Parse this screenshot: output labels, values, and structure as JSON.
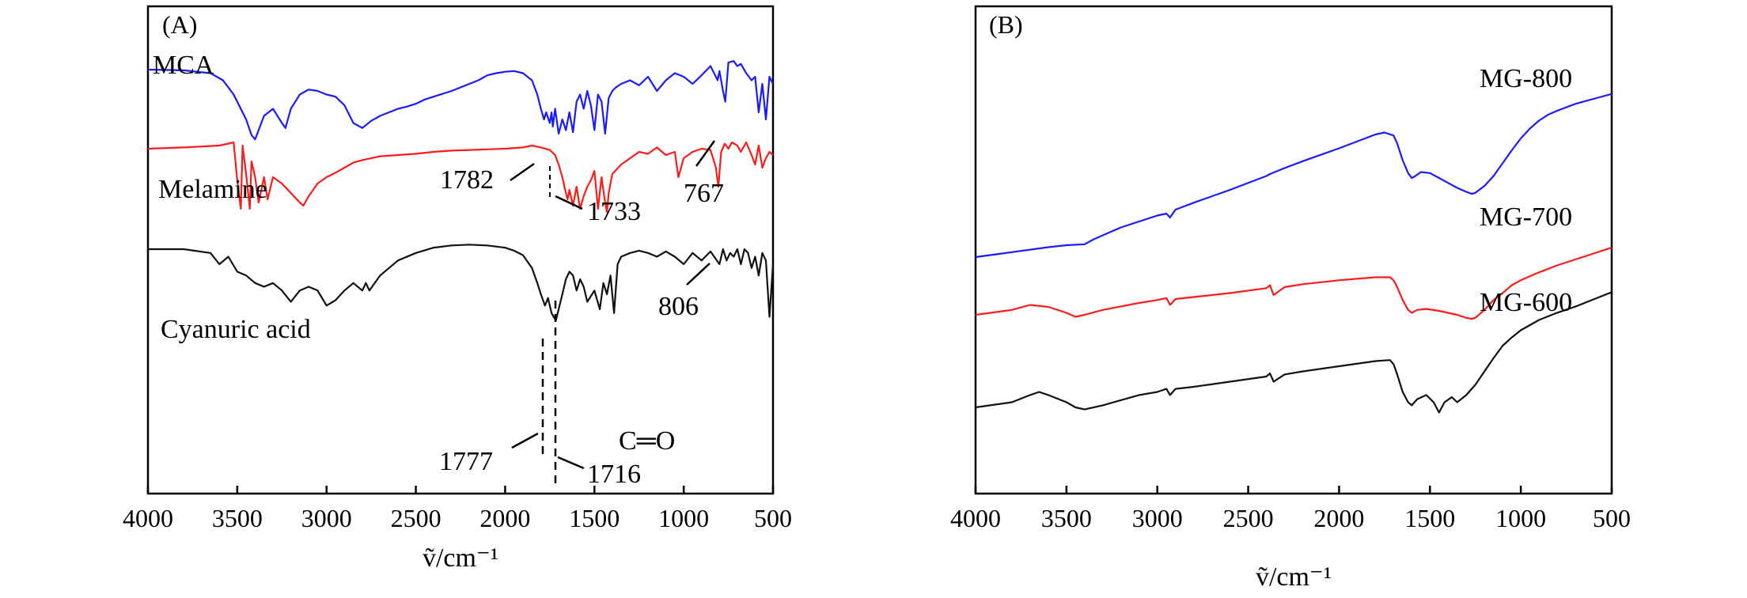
{
  "chart_data": [
    {
      "panel": "(A)",
      "type": "line",
      "xlabel": "ṽ/cm⁻¹",
      "xlim": [
        4000,
        500
      ],
      "xticks": [
        4000,
        3500,
        3000,
        2500,
        2000,
        1500,
        1000,
        500
      ],
      "series": [
        {
          "name": "MCA",
          "color": "#1a1aff",
          "x": [
            4000,
            3800,
            3650,
            3580,
            3520,
            3450,
            3420,
            3400,
            3380,
            3350,
            3300,
            3250,
            3230,
            3200,
            3150,
            3100,
            3050,
            3000,
            2950,
            2900,
            2850,
            2800,
            2750,
            2700,
            2650,
            2600,
            2550,
            2500,
            2450,
            2400,
            2300,
            2200,
            2150,
            2100,
            2050,
            2000,
            1950,
            1900,
            1850,
            1820,
            1800,
            1782,
            1770,
            1750,
            1740,
            1733,
            1720,
            1700,
            1680,
            1660,
            1640,
            1620,
            1600,
            1580,
            1560,
            1540,
            1520,
            1500,
            1480,
            1460,
            1440,
            1420,
            1400,
            1380,
            1350,
            1300,
            1250,
            1200,
            1150,
            1100,
            1050,
            1000,
            950,
            900,
            850,
            830,
            810,
            800,
            780,
            767,
            750,
            720,
            700,
            680,
            650,
            620,
            600,
            580,
            560,
            540,
            520,
            500
          ],
          "y": [
            0.0,
            -0.01,
            -0.05,
            -0.15,
            -0.35,
            -0.7,
            -0.92,
            -0.98,
            -0.85,
            -0.65,
            -0.55,
            -0.75,
            -0.82,
            -0.55,
            -0.35,
            -0.28,
            -0.3,
            -0.35,
            -0.38,
            -0.5,
            -0.75,
            -0.82,
            -0.72,
            -0.65,
            -0.6,
            -0.55,
            -0.52,
            -0.48,
            -0.42,
            -0.38,
            -0.3,
            -0.2,
            -0.15,
            -0.08,
            -0.05,
            -0.03,
            -0.02,
            -0.05,
            -0.15,
            -0.35,
            -0.55,
            -0.7,
            -0.6,
            -0.75,
            -0.6,
            -0.8,
            -0.55,
            -0.9,
            -0.7,
            -0.85,
            -0.6,
            -0.88,
            -0.45,
            -0.35,
            -0.55,
            -0.3,
            -0.5,
            -0.85,
            -0.35,
            -0.45,
            -0.9,
            -0.4,
            -0.3,
            -0.25,
            -0.2,
            -0.15,
            -0.22,
            -0.1,
            -0.3,
            -0.15,
            -0.05,
            -0.1,
            -0.2,
            -0.08,
            0.05,
            -0.05,
            -0.15,
            -0.02,
            -0.3,
            -0.45,
            0.1,
            0.12,
            0.05,
            0.08,
            -0.05,
            -0.15,
            -0.1,
            -0.6,
            -0.2,
            -0.7,
            -0.1,
            -0.2
          ]
        },
        {
          "name": "Melamine",
          "color": "#ff1a1a",
          "x": [
            4000,
            3800,
            3600,
            3520,
            3500,
            3480,
            3470,
            3450,
            3430,
            3420,
            3400,
            3380,
            3350,
            3330,
            3300,
            3250,
            3200,
            3150,
            3130,
            3100,
            3050,
            3000,
            2950,
            2900,
            2850,
            2800,
            2700,
            2600,
            2500,
            2400,
            2300,
            2200,
            2100,
            2000,
            1900,
            1850,
            1800,
            1750,
            1720,
            1700,
            1680,
            1660,
            1650,
            1640,
            1620,
            1600,
            1580,
            1560,
            1540,
            1520,
            1500,
            1480,
            1460,
            1440,
            1430,
            1420,
            1400,
            1350,
            1300,
            1250,
            1200,
            1150,
            1100,
            1050,
            1030,
            1000,
            950,
            900,
            850,
            820,
            806,
            790,
            770,
            750,
            730,
            700,
            680,
            650,
            620,
            600,
            580,
            560,
            540,
            520,
            500
          ],
          "y": [
            0.0,
            0.02,
            0.05,
            0.1,
            -0.5,
            -0.95,
            0.05,
            -0.4,
            -0.95,
            -0.2,
            -0.45,
            -0.85,
            -0.45,
            -0.8,
            -0.45,
            -0.55,
            -0.7,
            -0.85,
            -0.9,
            -0.75,
            -0.55,
            -0.45,
            -0.38,
            -0.3,
            -0.22,
            -0.18,
            -0.12,
            -0.1,
            -0.08,
            -0.05,
            -0.03,
            -0.02,
            -0.01,
            0.0,
            0.02,
            0.05,
            0.02,
            -0.02,
            -0.1,
            -0.25,
            -0.45,
            -0.7,
            -0.8,
            -0.65,
            -0.9,
            -0.6,
            -0.95,
            -0.75,
            -0.6,
            -0.5,
            -0.35,
            -0.95,
            -0.45,
            -0.85,
            -1.0,
            -0.7,
            -0.4,
            -0.25,
            -0.15,
            -0.05,
            -0.08,
            0.02,
            -0.1,
            -0.05,
            -0.45,
            -0.15,
            -0.05,
            0.0,
            -0.02,
            -0.3,
            -0.6,
            -0.05,
            0.08,
            0.0,
            0.1,
            0.05,
            -0.05,
            0.1,
            -0.1,
            -0.25,
            0.05,
            -0.3,
            -0.15,
            -0.05,
            -0.1
          ]
        },
        {
          "name": "Cyanuric acid",
          "color": "#111111",
          "x": [
            4000,
            3800,
            3650,
            3600,
            3550,
            3500,
            3450,
            3400,
            3350,
            3300,
            3250,
            3200,
            3150,
            3100,
            3050,
            3000,
            2950,
            2900,
            2850,
            2800,
            2780,
            2760,
            2700,
            2600,
            2500,
            2400,
            2300,
            2200,
            2100,
            2000,
            1950,
            1900,
            1850,
            1820,
            1800,
            1777,
            1760,
            1740,
            1716,
            1700,
            1680,
            1660,
            1640,
            1620,
            1600,
            1580,
            1560,
            1540,
            1500,
            1470,
            1450,
            1430,
            1410,
            1390,
            1370,
            1350,
            1300,
            1250,
            1200,
            1150,
            1100,
            1050,
            1000,
            950,
            900,
            850,
            800,
            780,
            760,
            740,
            720,
            700,
            680,
            660,
            640,
            620,
            600,
            580,
            560,
            540,
            520,
            500
          ],
          "y": [
            0.0,
            0.0,
            -0.05,
            -0.2,
            -0.1,
            -0.3,
            -0.35,
            -0.45,
            -0.5,
            -0.45,
            -0.55,
            -0.7,
            -0.55,
            -0.5,
            -0.55,
            -0.75,
            -0.68,
            -0.55,
            -0.45,
            -0.55,
            -0.45,
            -0.55,
            -0.35,
            -0.15,
            -0.05,
            0.02,
            0.05,
            0.06,
            0.05,
            0.02,
            -0.02,
            -0.08,
            -0.25,
            -0.45,
            -0.6,
            -0.75,
            -0.65,
            -0.85,
            -0.95,
            -0.8,
            -0.6,
            -0.4,
            -0.3,
            -0.35,
            -0.55,
            -0.4,
            -0.5,
            -0.7,
            -0.55,
            -0.8,
            -0.45,
            -0.6,
            -0.35,
            -0.85,
            -0.2,
            -0.1,
            -0.05,
            -0.02,
            -0.05,
            -0.1,
            -0.03,
            -0.1,
            -0.2,
            -0.05,
            -0.15,
            -0.03,
            -0.2,
            0.0,
            -0.15,
            -0.05,
            -0.1,
            0.0,
            -0.2,
            0.0,
            -0.05,
            -0.25,
            -0.1,
            -0.35,
            -0.05,
            -0.15,
            -0.9,
            -0.2
          ]
        }
      ],
      "annotations": [
        "1782",
        "1733",
        "767",
        "806",
        "1777",
        "1716",
        "C═O"
      ]
    },
    {
      "panel": "(B)",
      "type": "line",
      "xlabel": "ṽ/cm⁻¹",
      "xlim": [
        4000,
        500
      ],
      "xticks": [
        4000,
        3500,
        3000,
        2500,
        2000,
        1500,
        1000,
        500
      ],
      "series": [
        {
          "name": "MG-800",
          "color": "#1a1aff",
          "x": [
            4000,
            3800,
            3600,
            3500,
            3400,
            3350,
            3200,
            3000,
            2950,
            2930,
            2900,
            2800,
            2600,
            2400,
            2380,
            2300,
            2200,
            2000,
            1800,
            1750,
            1700,
            1680,
            1650,
            1620,
            1600,
            1580,
            1550,
            1500,
            1450,
            1400,
            1350,
            1300,
            1270,
            1250,
            1200,
            1150,
            1100,
            1050,
            1000,
            950,
            900,
            850,
            800,
            700,
            600,
            500
          ],
          "y": [
            0.0,
            0.05,
            0.1,
            0.12,
            0.13,
            0.18,
            0.3,
            0.42,
            0.44,
            0.4,
            0.48,
            0.55,
            0.68,
            0.82,
            0.84,
            0.9,
            0.97,
            1.1,
            1.24,
            1.26,
            1.23,
            1.15,
            0.98,
            0.85,
            0.8,
            0.82,
            0.86,
            0.85,
            0.8,
            0.75,
            0.7,
            0.66,
            0.64,
            0.65,
            0.72,
            0.82,
            0.95,
            1.08,
            1.2,
            1.3,
            1.38,
            1.44,
            1.48,
            1.55,
            1.6,
            1.65
          ]
        },
        {
          "name": "MG-700",
          "color": "#ff1a1a",
          "x": [
            4000,
            3800,
            3700,
            3600,
            3500,
            3450,
            3400,
            3300,
            3100,
            3000,
            2950,
            2930,
            2900,
            2800,
            2600,
            2400,
            2380,
            2360,
            2300,
            2200,
            2000,
            1800,
            1720,
            1700,
            1680,
            1650,
            1620,
            1600,
            1570,
            1520,
            1450,
            1400,
            1350,
            1300,
            1270,
            1250,
            1200,
            1150,
            1100,
            1050,
            1000,
            900,
            800,
            700,
            600,
            500
          ],
          "y": [
            0.0,
            0.05,
            0.1,
            0.08,
            0.02,
            -0.02,
            0.0,
            0.05,
            0.12,
            0.15,
            0.17,
            0.1,
            0.16,
            0.18,
            0.22,
            0.27,
            0.3,
            0.2,
            0.28,
            0.31,
            0.35,
            0.38,
            0.38,
            0.35,
            0.28,
            0.15,
            0.05,
            0.02,
            0.05,
            0.06,
            0.04,
            0.02,
            0.0,
            -0.03,
            -0.04,
            -0.03,
            0.05,
            0.15,
            0.22,
            0.3,
            0.35,
            0.43,
            0.5,
            0.56,
            0.62,
            0.68
          ]
        },
        {
          "name": "MG-600",
          "color": "#111111",
          "x": [
            4000,
            3800,
            3700,
            3650,
            3600,
            3500,
            3450,
            3400,
            3300,
            3100,
            3000,
            2950,
            2930,
            2900,
            2800,
            2600,
            2400,
            2380,
            2360,
            2300,
            2200,
            2000,
            1800,
            1720,
            1700,
            1680,
            1650,
            1620,
            1600,
            1570,
            1520,
            1480,
            1450,
            1420,
            1380,
            1350,
            1300,
            1250,
            1200,
            1150,
            1100,
            1050,
            1000,
            900,
            800,
            700,
            600,
            500
          ],
          "y": [
            0.0,
            0.05,
            0.12,
            0.15,
            0.12,
            0.05,
            0.0,
            -0.02,
            0.02,
            0.12,
            0.15,
            0.18,
            0.12,
            0.18,
            0.2,
            0.25,
            0.3,
            0.33,
            0.25,
            0.32,
            0.35,
            0.4,
            0.45,
            0.46,
            0.42,
            0.32,
            0.15,
            0.05,
            0.02,
            0.08,
            0.12,
            0.05,
            -0.05,
            0.05,
            0.1,
            0.05,
            0.12,
            0.22,
            0.35,
            0.48,
            0.6,
            0.68,
            0.75,
            0.85,
            0.92,
            0.98,
            1.05,
            1.12
          ]
        }
      ]
    }
  ]
}
